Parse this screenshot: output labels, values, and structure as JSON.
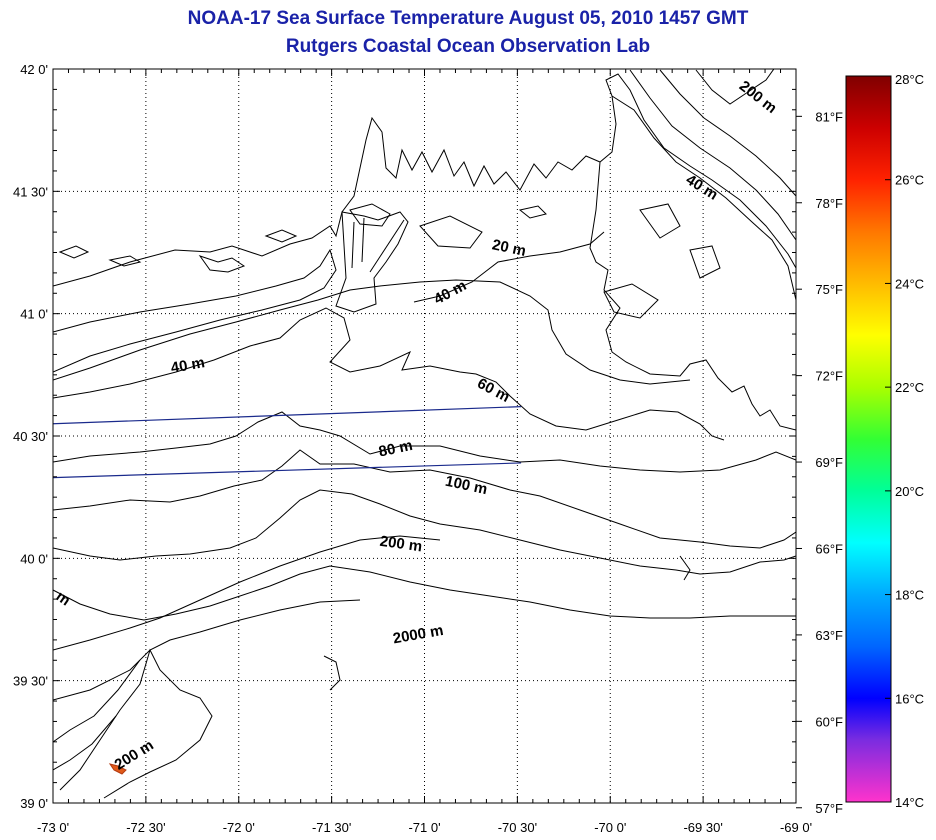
{
  "header": {
    "title": "NOAA-17 Sea Surface Temperature August 05, 2010 1457 GMT",
    "subtitle": "Rutgers Coastal Ocean Observation Lab",
    "title_color": "#1a22a8"
  },
  "map": {
    "lon_range": [
      -73.0,
      -69.0
    ],
    "lat_range": [
      39.0,
      42.0
    ],
    "x_tick_labels": [
      "-73 0'",
      "-72 30'",
      "-72 0'",
      "-71 30'",
      "-71 0'",
      "-70 30'",
      "-70 0'",
      "-69 30'",
      "-69 0'"
    ],
    "y_tick_labels": [
      "39 0'",
      "39 30'",
      "40 0'",
      "40 30'",
      "41 0'",
      "41 30'",
      "42 0'"
    ],
    "right_axis_labels": [
      "57°F",
      "60°F",
      "63°F",
      "66°F",
      "69°F",
      "72°F",
      "75°F",
      "78°F",
      "81°F"
    ],
    "grid": "dotted",
    "line_color": "#000000",
    "track_color": "#1a2a8c",
    "hotspot_color": "#e05a1a",
    "contour_labels": [
      {
        "text": "200 m",
        "lon": -69.22,
        "lat": 41.87,
        "rotate": 38
      },
      {
        "text": "40 m",
        "lon": -69.52,
        "lat": 41.5,
        "rotate": 32
      },
      {
        "text": "20 m",
        "lon": -70.55,
        "lat": 41.25,
        "rotate": 12
      },
      {
        "text": "40 m",
        "lon": -70.85,
        "lat": 41.07,
        "rotate": -28
      },
      {
        "text": "40 m",
        "lon": -72.27,
        "lat": 40.77,
        "rotate": -10
      },
      {
        "text": "60 m",
        "lon": -70.64,
        "lat": 40.67,
        "rotate": 28
      },
      {
        "text": "80 m",
        "lon": -71.15,
        "lat": 40.43,
        "rotate": -12
      },
      {
        "text": "100 m",
        "lon": -70.78,
        "lat": 40.28,
        "rotate": 12
      },
      {
        "text": "200 m",
        "lon": -71.13,
        "lat": 40.04,
        "rotate": 8
      },
      {
        "text": "2000 m",
        "lon": -71.03,
        "lat": 39.67,
        "rotate": -10
      },
      {
        "text": "200 m",
        "lon": -72.55,
        "lat": 39.18,
        "rotate": -32
      },
      {
        "text": "m",
        "lon": -72.96,
        "lat": 39.82,
        "rotate": 35
      }
    ],
    "tracks": [
      {
        "start": [
          -73.0,
          40.55
        ],
        "end": [
          -70.48,
          40.62
        ]
      },
      {
        "start": [
          -73.0,
          40.33
        ],
        "end": [
          -70.48,
          40.39
        ]
      }
    ]
  },
  "colorbar": {
    "celsius_labels": [
      "28°C",
      "26°C",
      "24°C",
      "22°C",
      "20°C",
      "18°C",
      "16°C",
      "14°C"
    ],
    "c_range": [
      14,
      28
    ],
    "stops": [
      {
        "value": 14,
        "color": "#ff33cc"
      },
      {
        "value": 15.2,
        "color": "#7a2ce0"
      },
      {
        "value": 16,
        "color": "#0000ff"
      },
      {
        "value": 17,
        "color": "#0066ff"
      },
      {
        "value": 18,
        "color": "#00aaff"
      },
      {
        "value": 19,
        "color": "#00ffff"
      },
      {
        "value": 20,
        "color": "#00ff99"
      },
      {
        "value": 21,
        "color": "#33ff33"
      },
      {
        "value": 22,
        "color": "#aaff00"
      },
      {
        "value": 23,
        "color": "#ffff00"
      },
      {
        "value": 24,
        "color": "#ffbb00"
      },
      {
        "value": 25,
        "color": "#ff7700"
      },
      {
        "value": 26,
        "color": "#ff2200"
      },
      {
        "value": 27,
        "color": "#cc0000"
      },
      {
        "value": 28,
        "color": "#800000"
      }
    ]
  }
}
